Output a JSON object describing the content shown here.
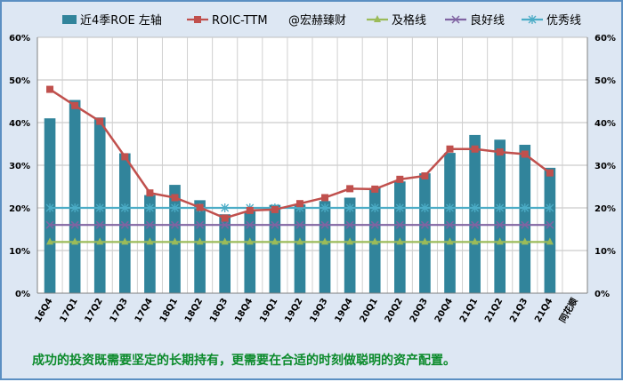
{
  "chart_data": {
    "type": "bar",
    "categories": [
      "16Q4",
      "17Q1",
      "17Q2",
      "17Q3",
      "17Q4",
      "18Q1",
      "18Q2",
      "18Q3",
      "18Q4",
      "19Q1",
      "19Q2",
      "19Q3",
      "19Q4",
      "20Q1",
      "20Q2",
      "20Q3",
      "20Q4",
      "21Q1",
      "21Q2",
      "21Q3",
      "21Q4",
      "同花顺"
    ],
    "ylim": [
      0,
      60
    ],
    "yticks": [
      "0%",
      "10%",
      "20%",
      "30%",
      "40%",
      "50%",
      "60%"
    ],
    "bar_series": {
      "name": "近4季ROE 左轴",
      "color": "#31849b",
      "values": [
        41,
        45.3,
        41.2,
        32.8,
        23,
        25.4,
        21.8,
        18.5,
        19.2,
        20.7,
        20.8,
        21.6,
        22.4,
        24.7,
        26.2,
        28.1,
        32.9,
        37.1,
        36,
        34.8,
        29.4,
        null
      ]
    },
    "line_series": [
      {
        "name": "ROIC-TTM",
        "color": "#c0504d",
        "marker": "square",
        "values": [
          47.8,
          44,
          40.3,
          32,
          23.5,
          22.4,
          20.1,
          17.6,
          19.4,
          19.6,
          21,
          22.4,
          24.5,
          24.4,
          26.7,
          27.5,
          33.8,
          33.8,
          33.1,
          32.6,
          28.2,
          null
        ]
      },
      {
        "name": "及格线",
        "color": "#9bbb59",
        "marker": "triangle",
        "values": [
          12,
          12,
          12,
          12,
          12,
          12,
          12,
          12,
          12,
          12,
          12,
          12,
          12,
          12,
          12,
          12,
          12,
          12,
          12,
          12,
          12,
          null
        ]
      },
      {
        "name": "良好线",
        "color": "#8064a2",
        "marker": "x",
        "values": [
          16,
          16,
          16,
          16,
          16,
          16,
          16,
          16,
          16,
          16,
          16,
          16,
          16,
          16,
          16,
          16,
          16,
          16,
          16,
          16,
          16,
          null
        ]
      },
      {
        "name": "优秀线",
        "color": "#4bacc6",
        "marker": "star",
        "values": [
          20,
          20,
          20,
          20,
          20,
          20,
          20,
          20,
          20,
          20,
          20,
          20,
          20,
          20,
          20,
          20,
          20,
          20,
          20,
          20,
          20,
          null
        ]
      }
    ],
    "watermark_legend": "@宏赫臻财",
    "legend_position": "top",
    "grid": true
  },
  "footnote": "成功的投资既需要坚定的长期持有，更需要在合适的时刻做聪明的资产配置。"
}
